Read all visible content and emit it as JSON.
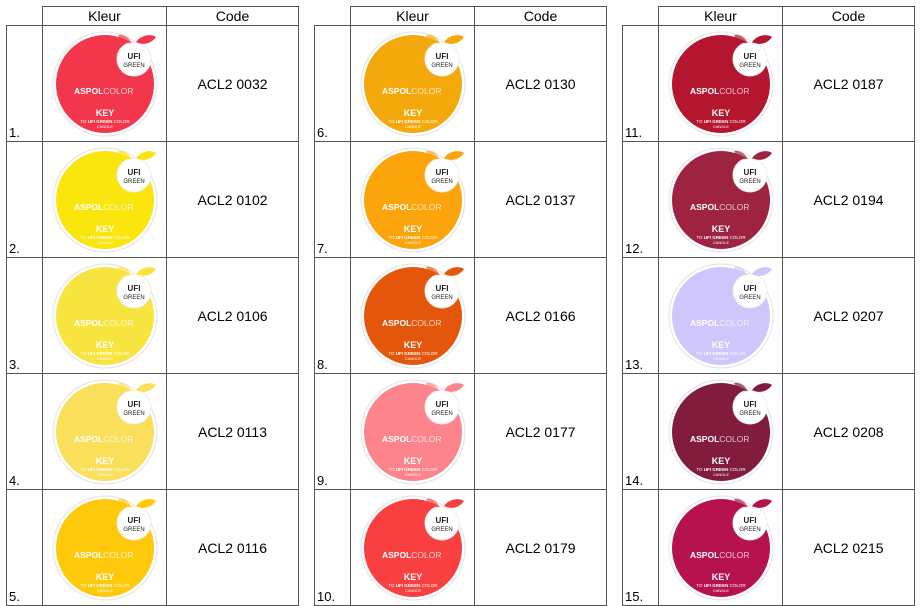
{
  "header": {
    "color_label": "Kleur",
    "code_label": "Code"
  },
  "swatch_text": {
    "brand_bold": "ASPOL",
    "brand_light": "COLOR",
    "key": "KEY",
    "subline_pre": "TO ",
    "subline_bold": "UFI GREEN",
    "subline_post": " COLOR",
    "candle": "CANDLE",
    "badge_top": "UFI",
    "badge_bottom": "GREEN"
  },
  "columns": [
    {
      "items": [
        {
          "num": "1.",
          "code": "ACL2 0032",
          "color": "#f2364c"
        },
        {
          "num": "2.",
          "code": "ACL2 0102",
          "color": "#fae60c"
        },
        {
          "num": "3.",
          "code": "ACL2 0106",
          "color": "#f8e43e"
        },
        {
          "num": "4.",
          "code": "ACL2 0113",
          "color": "#f9df5a"
        },
        {
          "num": "5.",
          "code": "ACL2 0116",
          "color": "#fdc90a"
        }
      ]
    },
    {
      "items": [
        {
          "num": "6.",
          "code": "ACL2 0130",
          "color": "#f3a90c"
        },
        {
          "num": "7.",
          "code": "ACL2 0137",
          "color": "#fba40c"
        },
        {
          "num": "8.",
          "code": "ACL2 0166",
          "color": "#e4560b"
        },
        {
          "num": "9.",
          "code": "ACL2 0177",
          "color": "#fd848c"
        },
        {
          "num": "10.",
          "code": "ACL2 0179",
          "color": "#f84040"
        }
      ]
    },
    {
      "items": [
        {
          "num": "11.",
          "code": "ACL2 0187",
          "color": "#b4152f"
        },
        {
          "num": "12.",
          "code": "ACL2 0194",
          "color": "#9e2341"
        },
        {
          "num": "13.",
          "code": "ACL2 0207",
          "color": "#cfc6fb"
        },
        {
          "num": "14.",
          "code": "ACL2 0208",
          "color": "#811c3d"
        },
        {
          "num": "15.",
          "code": "ACL2 0215",
          "color": "#b6124d"
        }
      ]
    }
  ]
}
